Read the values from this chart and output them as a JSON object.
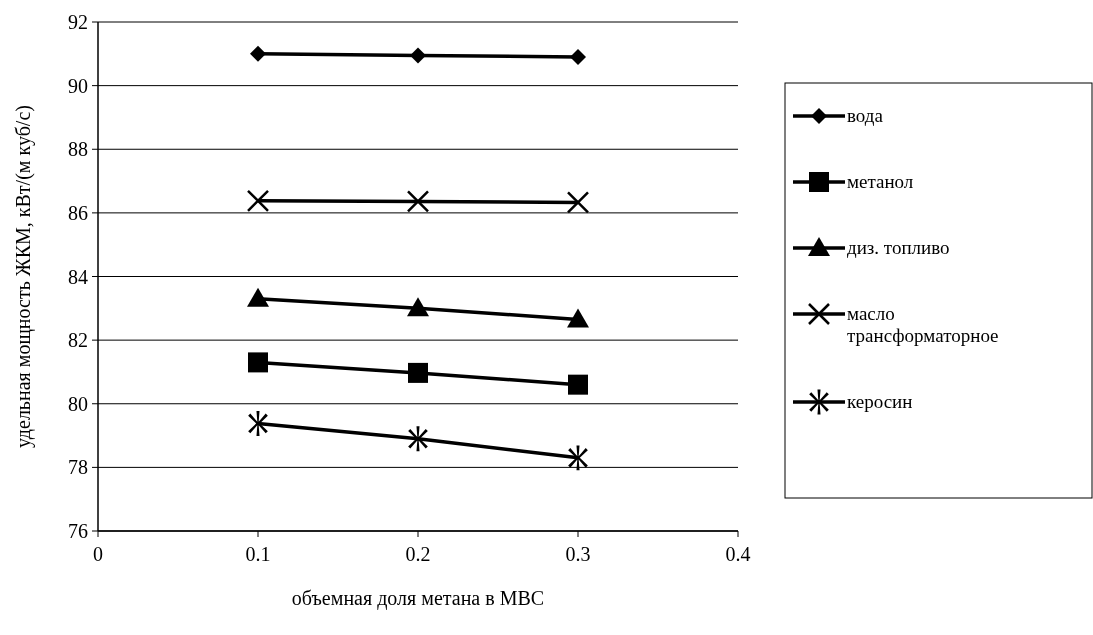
{
  "chart_data": {
    "type": "line",
    "xlabel": "объемная доля метана в МВС",
    "ylabel": "удельная мощность ЖКМ, кВт/(м куб/с)",
    "x": [
      0.1,
      0.2,
      0.3
    ],
    "xlim": [
      0,
      0.4
    ],
    "xticks": [
      0,
      0.1,
      0.2,
      0.3,
      0.4
    ],
    "ylim": [
      76,
      92
    ],
    "yticks": [
      76,
      78,
      80,
      82,
      84,
      86,
      88,
      90,
      92
    ],
    "grid": "y",
    "legend": "right",
    "line_style": "solid",
    "series": [
      {
        "name": "вода",
        "color": "#000000",
        "marker": "diamond",
        "values": [
          91.0,
          90.95,
          90.9
        ]
      },
      {
        "name": "метанол",
        "color": "#000000",
        "marker": "square",
        "values": [
          81.3,
          80.97,
          80.6
        ]
      },
      {
        "name": "диз. топливо",
        "color": "#000000",
        "marker": "triangle",
        "values": [
          83.3,
          83.0,
          82.65
        ]
      },
      {
        "name": "масло трансформаторное",
        "color": "#000000",
        "marker": "cross",
        "values": [
          86.38,
          86.36,
          86.33
        ]
      },
      {
        "name": "керосин",
        "color": "#000000",
        "marker": "star",
        "values": [
          79.38,
          78.9,
          78.3
        ]
      }
    ]
  }
}
